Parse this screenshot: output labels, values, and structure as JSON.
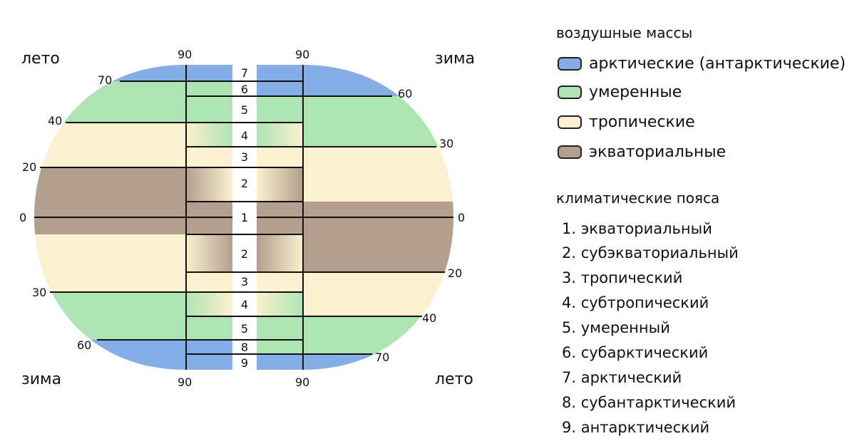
{
  "corners": {
    "top_left": "лето",
    "top_right": "зима",
    "bottom_left": "зима",
    "bottom_right": "лето"
  },
  "latitude_labels": {
    "left": [
      "70",
      "40",
      "20",
      "0",
      "30",
      "60"
    ],
    "right": [
      "60",
      "30",
      "0",
      "20",
      "40",
      "70"
    ],
    "top": [
      "90",
      "90"
    ],
    "bottom": [
      "90",
      "90"
    ]
  },
  "zone_numbers_column": [
    "7",
    "6",
    "5",
    "4",
    "3",
    "2",
    "1",
    "2",
    "3",
    "4",
    "5",
    "8",
    "9"
  ],
  "legend": {
    "air_masses_title": "воздушные массы",
    "air_masses": [
      {
        "label": "арктические (антарктические)",
        "color": "#86aee6"
      },
      {
        "label": "умеренные",
        "color": "#aee4b4"
      },
      {
        "label": "тропические",
        "color": "#fbf0cf"
      },
      {
        "label": "экваториальные",
        "color": "#b29f8e"
      }
    ],
    "zones_title": "климатические пояса",
    "zones": [
      "1. экваториальный",
      "2. субэкваториальный",
      "3. тропический",
      "4. субтропический",
      "5. умеренный",
      "6. субарктический",
      "7. арктический",
      "8. субантарктический",
      "9. антарктический"
    ]
  },
  "colors": {
    "arctic": "#86aee6",
    "temperate": "#aee4b4",
    "tropical": "#fbf0cf",
    "equatorial": "#b29f8e"
  }
}
